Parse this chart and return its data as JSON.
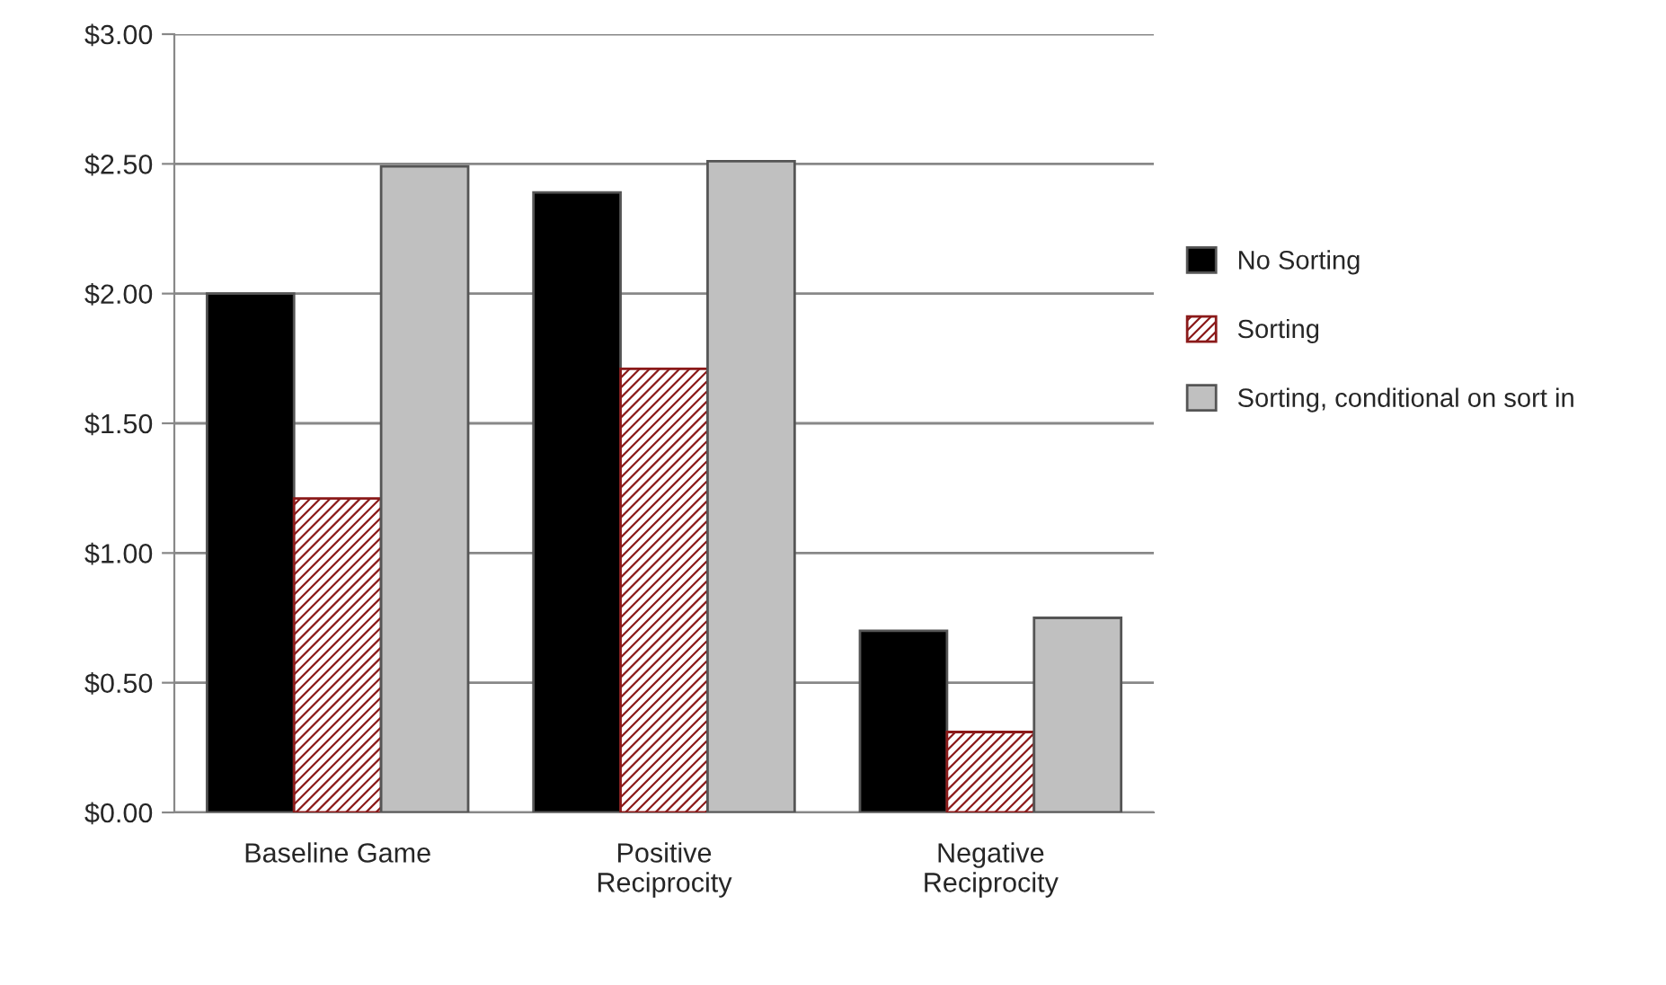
{
  "chart_data": {
    "type": "bar",
    "categories": [
      "Baseline Game",
      "Positive\nReciprocity",
      "Negative\nReciprocity"
    ],
    "series": [
      {
        "name": "No Sorting",
        "color": "#000000",
        "values": [
          2.0,
          2.39,
          0.7
        ]
      },
      {
        "name": "Sorting",
        "color": "#8b1a1a",
        "values": [
          1.21,
          1.71,
          0.31
        ]
      },
      {
        "name": "Sorting, conditional on sort in",
        "color": "#c0c0c0",
        "values": [
          2.49,
          2.51,
          0.75
        ]
      }
    ],
    "ylim": [
      0,
      3
    ],
    "yticks": [
      {
        "value": 0,
        "label": "$0.00"
      },
      {
        "value": 0.5,
        "label": "$0.50"
      },
      {
        "value": 1,
        "label": "$1.00"
      },
      {
        "value": 1.5,
        "label": "$1.50"
      },
      {
        "value": 2,
        "label": "$2.00"
      },
      {
        "value": 2.5,
        "label": "$2.50"
      },
      {
        "value": 3,
        "label": "$3.00"
      }
    ],
    "grid": "y",
    "legend": "right"
  }
}
